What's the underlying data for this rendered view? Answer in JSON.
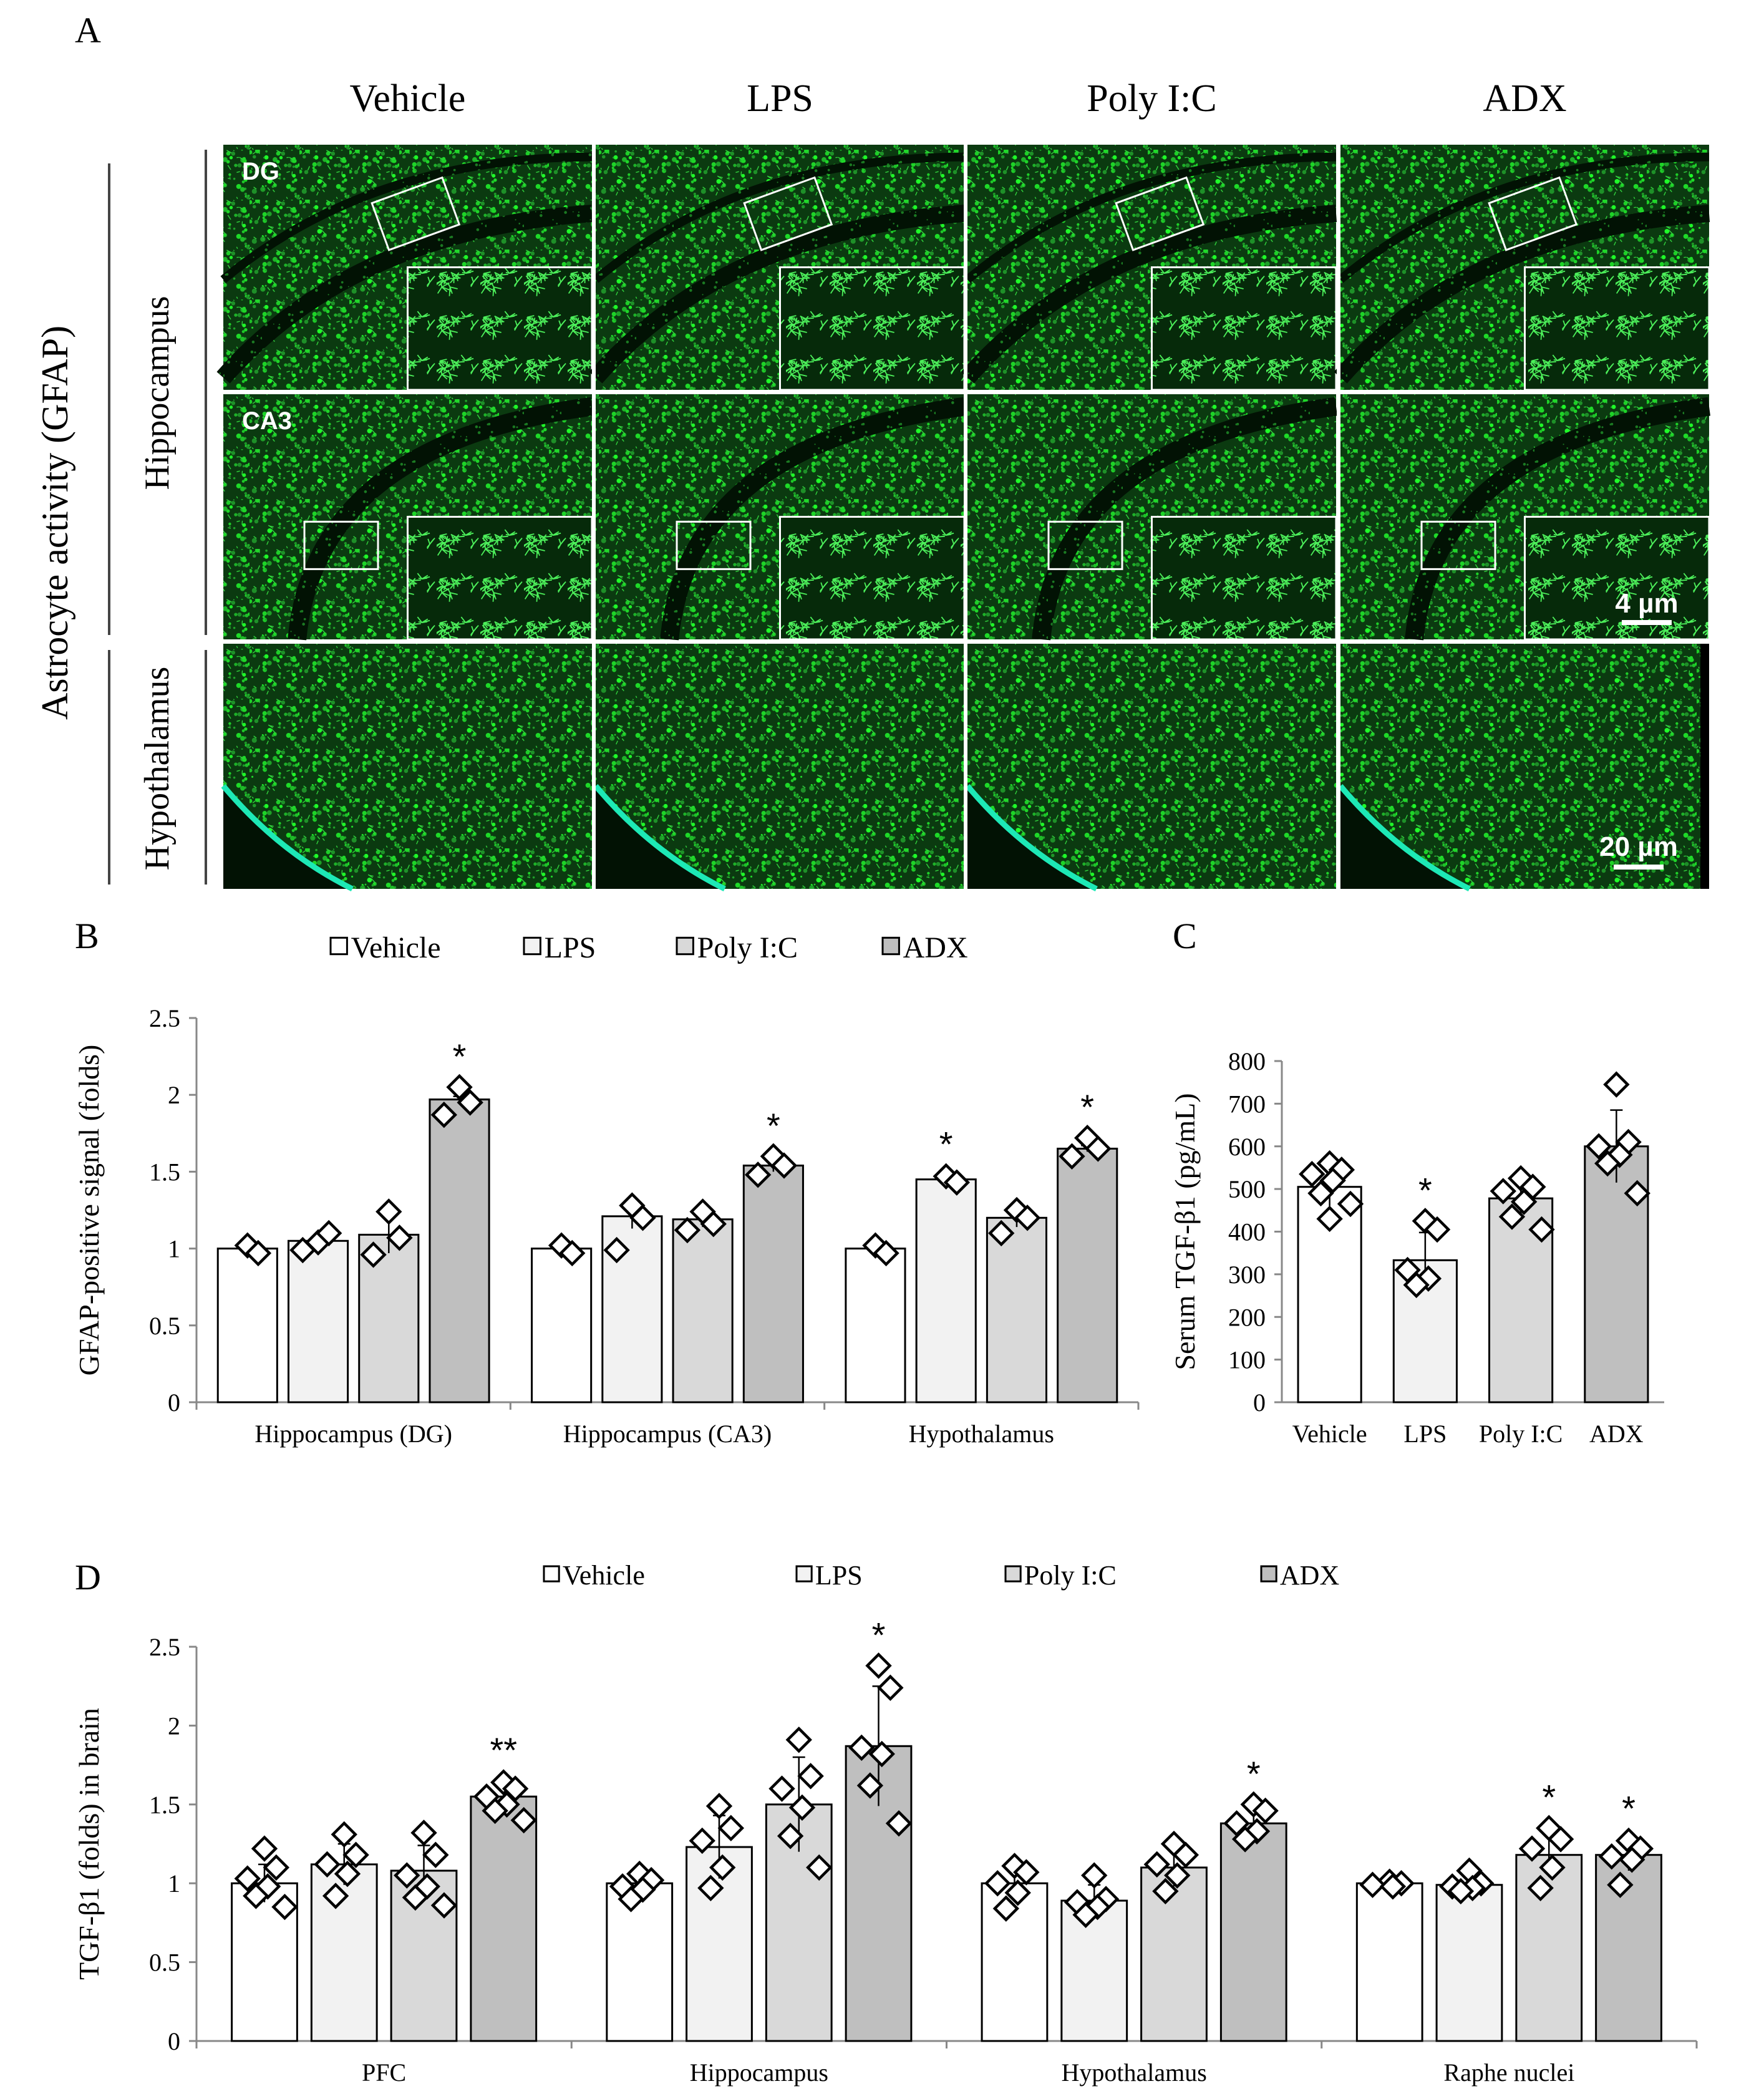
{
  "colors": {
    "vehicle": "#ffffff",
    "lps": "#f2f2f2",
    "polyic": "#d9d9d9",
    "adx": "#bfbfbf",
    "fluorescence": "#22c434",
    "edge_glow": "#1de9b6",
    "tissue_dark": "#021204"
  },
  "panel_a": {
    "letter": "A",
    "y_title": "Astrocyte activity (GFAP)",
    "columns": [
      "Vehicle",
      "LPS",
      "Poly I:C",
      "ADX"
    ],
    "rows": [
      {
        "group": "Hippocampus",
        "tag": "DG",
        "inset": true
      },
      {
        "group": "Hippocampus",
        "tag": "CA3",
        "inset": true
      },
      {
        "group": "Hypothalamus",
        "tag": "",
        "inset": false
      }
    ],
    "region_labels": [
      "Hippocampus",
      "Hypothalamus"
    ],
    "scalebars": [
      "4 µm",
      "20 µm"
    ]
  },
  "chart_data": [
    {
      "id": "B",
      "type": "bar",
      "letter": "B",
      "legend_position": "top",
      "legend": [
        "Vehicle",
        "LPS",
        "Poly I:C",
        "ADX"
      ],
      "ylabel": "GFAP-positive signal (folds)",
      "xlabel": "",
      "ylim": [
        0,
        2.5
      ],
      "yticks": [
        0,
        0.5,
        1,
        1.5,
        2,
        2.5
      ],
      "ytick_labels": [
        "0",
        "0.5",
        "1",
        "1.5",
        "2",
        "2.5"
      ],
      "categories": [
        "Hippocampus (DG)",
        "Hippocampus (CA3)",
        "Hypothalamus"
      ],
      "series": [
        {
          "name": "Vehicle",
          "values": [
            1.0,
            1.0,
            1.0
          ],
          "err": [
            0,
            0,
            0
          ]
        },
        {
          "name": "LPS",
          "values": [
            1.05,
            1.21,
            1.45
          ],
          "err": [
            0.03,
            0.08,
            0.03
          ]
        },
        {
          "name": "Poly I:C",
          "values": [
            1.09,
            1.19,
            1.2
          ],
          "err": [
            0.12,
            0.05,
            0.06
          ]
        },
        {
          "name": "ADX",
          "values": [
            1.97,
            1.54,
            1.65
          ],
          "err": [
            0.02,
            0.04,
            0.02
          ]
        }
      ],
      "points": [
        [
          [
            1.02,
            0.97
          ],
          [
            1.04,
            1.1,
            0.99
          ],
          [
            1.24,
            1.07,
            0.96
          ],
          [
            2.05,
            1.95,
            1.87
          ]
        ],
        [
          [
            1.02,
            0.97
          ],
          [
            1.28,
            1.2,
            0.99
          ],
          [
            1.24,
            1.16,
            1.12
          ],
          [
            1.6,
            1.54,
            1.48
          ]
        ],
        [
          [
            1.02,
            0.97
          ],
          [
            1.47,
            1.43
          ],
          [
            1.25,
            1.2,
            1.1
          ],
          [
            1.72,
            1.65,
            1.6
          ]
        ]
      ],
      "annotations": [
        [
          "",
          "",
          "",
          "*"
        ],
        [
          "",
          "",
          "",
          "*"
        ],
        [
          "",
          "*",
          "",
          "*"
        ]
      ]
    },
    {
      "id": "C",
      "type": "bar",
      "letter": "C",
      "ylabel": "Serum TGF-β1 (pg/mL)",
      "xlabel": "",
      "ylim": [
        0,
        800
      ],
      "yticks": [
        0,
        100,
        200,
        300,
        400,
        500,
        600,
        700,
        800
      ],
      "ytick_labels": [
        "0",
        "100",
        "200",
        "300",
        "400",
        "500",
        "600",
        "700",
        "800"
      ],
      "categories": [
        "Vehicle",
        "LPS",
        "Poly I:C",
        "ADX"
      ],
      "values": [
        505,
        333,
        478,
        600
      ],
      "err": [
        45,
        65,
        40,
        85
      ],
      "points": [
        [
          560,
          545,
          535,
          520,
          490,
          465,
          430
        ],
        [
          425,
          405,
          310,
          290,
          275
        ],
        [
          525,
          505,
          495,
          470,
          435,
          405
        ],
        [
          745,
          610,
          600,
          580,
          560,
          490
        ]
      ],
      "annotations": [
        "",
        "*",
        "",
        ""
      ]
    },
    {
      "id": "D",
      "type": "bar",
      "letter": "D",
      "legend_position": "top",
      "legend": [
        "Vehicle",
        "LPS",
        "Poly I:C",
        "ADX"
      ],
      "ylabel": "TGF-β1 (folds) in brain",
      "xlabel": "",
      "ylim": [
        0,
        2.5
      ],
      "yticks": [
        0,
        0.5,
        1,
        1.5,
        2,
        2.5
      ],
      "ytick_labels": [
        "0",
        "0.5",
        "1",
        "1.5",
        "2",
        "2.5"
      ],
      "categories": [
        "PFC",
        "Hippocampus",
        "Hypothalamus",
        "Raphe nuclei"
      ],
      "series": [
        {
          "name": "Vehicle",
          "values": [
            1.0,
            1.0,
            1.0,
            1.0
          ],
          "err": [
            0.12,
            0.06,
            0.1,
            0.02
          ]
        },
        {
          "name": "LPS",
          "values": [
            1.12,
            1.23,
            0.89,
            0.99
          ],
          "err": [
            0.13,
            0.2,
            0.1,
            0.07
          ]
        },
        {
          "name": "Poly I:C",
          "values": [
            1.08,
            1.5,
            1.1,
            1.18
          ],
          "err": [
            0.16,
            0.3,
            0.12,
            0.14
          ]
        },
        {
          "name": "ADX",
          "values": [
            1.55,
            1.87,
            1.38,
            1.18
          ],
          "err": [
            0.1,
            0.38,
            0.1,
            0.1
          ]
        }
      ],
      "points": [
        [
          [
            1.22,
            1.1,
            1.03,
            0.98,
            0.92,
            0.85
          ],
          [
            1.31,
            1.18,
            1.12,
            1.06,
            0.92
          ],
          [
            1.32,
            1.18,
            1.05,
            0.98,
            0.91,
            0.86
          ],
          [
            1.64,
            1.6,
            1.55,
            1.5,
            1.46,
            1.4
          ]
        ],
        [
          [
            1.06,
            1.02,
            0.98,
            0.96,
            0.9
          ],
          [
            1.49,
            1.35,
            1.27,
            1.1,
            0.97
          ],
          [
            1.91,
            1.68,
            1.6,
            1.48,
            1.3,
            1.1
          ],
          [
            2.38,
            2.24,
            1.86,
            1.82,
            1.62,
            1.38
          ]
        ],
        [
          [
            1.11,
            1.07,
            1.0,
            0.94,
            0.84
          ],
          [
            1.05,
            0.9,
            0.88,
            0.85,
            0.8
          ],
          [
            1.25,
            1.18,
            1.12,
            1.05,
            0.95
          ],
          [
            1.5,
            1.46,
            1.38,
            1.33,
            1.28
          ]
        ],
        [
          [
            1.01,
            1.0,
            0.99,
            0.98
          ],
          [
            1.08,
            1.0,
            0.98,
            0.97,
            0.95
          ],
          [
            1.35,
            1.28,
            1.22,
            1.1,
            0.97
          ],
          [
            1.27,
            1.22,
            1.17,
            1.15,
            0.99
          ]
        ]
      ],
      "annotations": [
        [
          "",
          "",
          "",
          "**"
        ],
        [
          "",
          "",
          "",
          "*"
        ],
        [
          "",
          "",
          "",
          "*"
        ],
        [
          "",
          "",
          "*",
          "*"
        ]
      ]
    }
  ]
}
